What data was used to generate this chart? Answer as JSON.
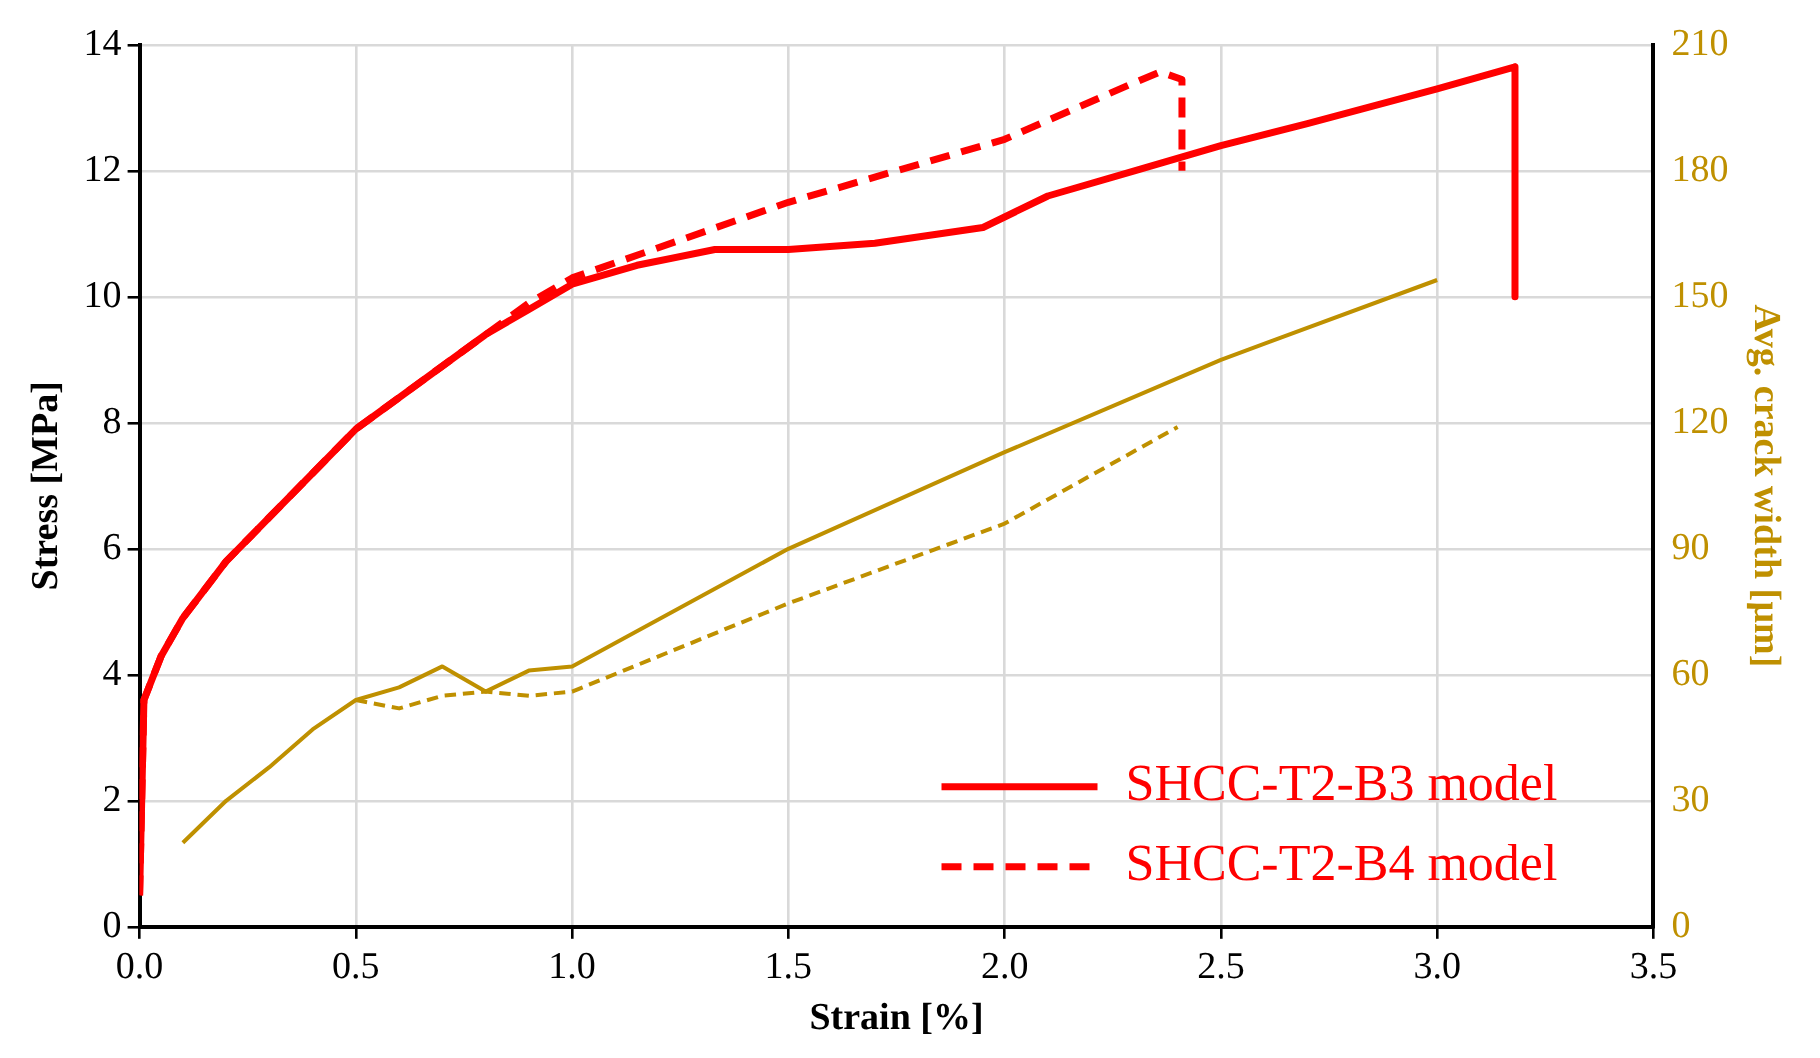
{
  "chart_data": {
    "type": "line",
    "xlabel": "Strain [%]",
    "ylabel": "Stress [MPa]",
    "y2label": "Avg. crack width [µm]",
    "xlim": [
      0,
      3.5
    ],
    "xticks": [
      {
        "value": 0,
        "label": "0.0"
      },
      {
        "value": 0.5,
        "label": "0.5"
      },
      {
        "value": 1,
        "label": "1.0"
      },
      {
        "value": 1.5,
        "label": "1.5"
      },
      {
        "value": 2,
        "label": "2.0"
      },
      {
        "value": 2.5,
        "label": "2.5"
      },
      {
        "value": 3,
        "label": "3.0"
      },
      {
        "value": 3.5,
        "label": "3.5"
      }
    ],
    "ylim": [
      0,
      14
    ],
    "yticks": [
      0,
      2,
      4,
      6,
      8,
      10,
      12,
      14
    ],
    "y2lim": [
      0,
      210
    ],
    "y2ticks": [
      0,
      30,
      60,
      90,
      120,
      150,
      180,
      210
    ],
    "grid": true,
    "legend": "bottom right",
    "marker": "none",
    "series": [
      {
        "name": "SHCC-T2-B3 model",
        "color": "#ff0000",
        "line_style": "solid",
        "x": [
          0,
          0.01,
          0.05,
          0.1,
          0.2,
          0.3,
          0.4,
          0.5,
          0.6,
          0.7,
          0.8,
          0.9,
          1.0,
          1.15,
          1.33,
          1.5,
          1.7,
          1.95,
          2.1,
          2.3,
          2.5,
          2.7,
          3.0,
          3.18,
          3.18
        ],
        "values": [
          0.5,
          3.6,
          4.3,
          4.9,
          5.8,
          6.5,
          7.2,
          7.9,
          8.4,
          8.9,
          9.4,
          9.8,
          10.2,
          10.5,
          10.75,
          10.75,
          10.85,
          11.1,
          11.6,
          12.0,
          12.4,
          12.75,
          13.3,
          13.65,
          10.0
        ]
      },
      {
        "name": "SHCC-T2-B4 model",
        "color": "#ff0000",
        "line_style": "dashed",
        "x": [
          0,
          0.01,
          0.05,
          0.1,
          0.2,
          0.3,
          0.4,
          0.5,
          0.6,
          0.7,
          0.8,
          0.9,
          1.0,
          1.5,
          2.0,
          2.3,
          2.36,
          2.41,
          2.41
        ],
        "values": [
          0.5,
          3.6,
          4.3,
          4.9,
          5.8,
          6.5,
          7.2,
          7.9,
          8.4,
          8.9,
          9.4,
          9.9,
          10.3,
          11.5,
          12.5,
          13.4,
          13.57,
          13.45,
          12.0
        ]
      },
      {
        "color": "#bf9000",
        "line_style": "solid",
        "axis": "y2",
        "x": [
          0.1,
          0.2,
          0.3,
          0.4,
          0.5,
          0.6,
          0.7,
          0.8,
          0.9,
          1.0,
          1.5,
          2.0,
          2.5,
          3.0
        ],
        "values": [
          20,
          30,
          38,
          47,
          54,
          57,
          62,
          56,
          61,
          62,
          90,
          113,
          135,
          154
        ]
      },
      {
        "color": "#bf9000",
        "line_style": "dashed",
        "axis": "y2",
        "x": [
          0.5,
          0.6,
          0.7,
          0.8,
          0.9,
          1.0,
          1.5,
          2.0,
          2.4
        ],
        "values": [
          54,
          52,
          55,
          56,
          55,
          56,
          77,
          96,
          119
        ]
      }
    ]
  }
}
